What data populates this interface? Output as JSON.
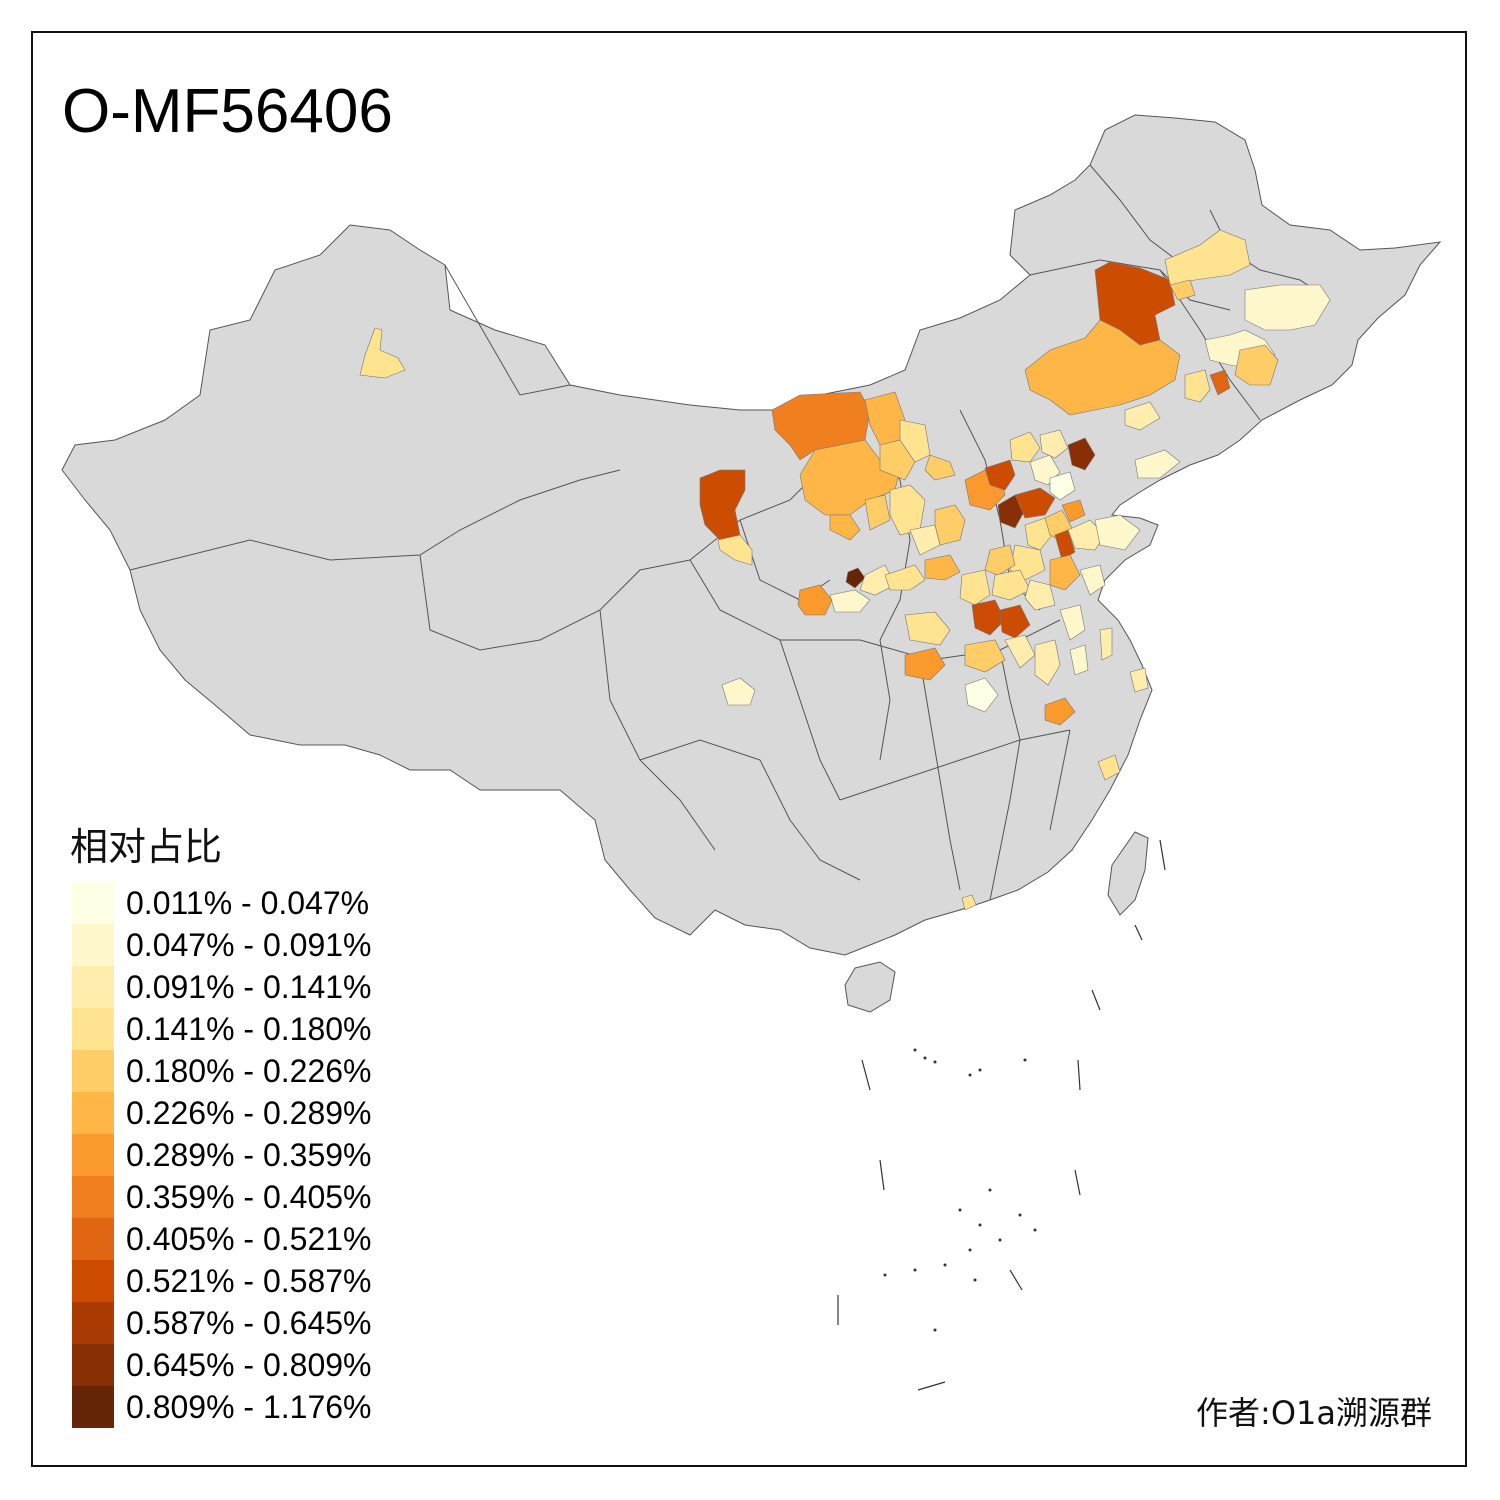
{
  "title": "O-MF56406",
  "legend": {
    "title": "相对占比",
    "items": [
      {
        "label": "0.011% - 0.047%",
        "color": "#FFFFE5"
      },
      {
        "label": "0.047% - 0.091%",
        "color": "#FFF7CC"
      },
      {
        "label": "0.091% - 0.141%",
        "color": "#FEEDAD"
      },
      {
        "label": "0.141% - 0.180%",
        "color": "#FEE391"
      },
      {
        "label": "0.180% - 0.226%",
        "color": "#FECD68"
      },
      {
        "label": "0.226% - 0.289%",
        "color": "#FEB746"
      },
      {
        "label": "0.289% - 0.359%",
        "color": "#FB9A2C"
      },
      {
        "label": "0.359% - 0.405%",
        "color": "#F0801F"
      },
      {
        "label": "0.405% - 0.521%",
        "color": "#E06613"
      },
      {
        "label": "0.521% - 0.587%",
        "color": "#CC4C02"
      },
      {
        "label": "0.587% - 0.645%",
        "color": "#AA3C03"
      },
      {
        "label": "0.645% - 0.809%",
        "color": "#882F05"
      },
      {
        "label": "0.809% - 1.176%",
        "color": "#662506"
      }
    ]
  },
  "author": "作者:O1a溯源群",
  "colors": {
    "base_land": "#D9D9D9",
    "border": "#555555"
  }
}
